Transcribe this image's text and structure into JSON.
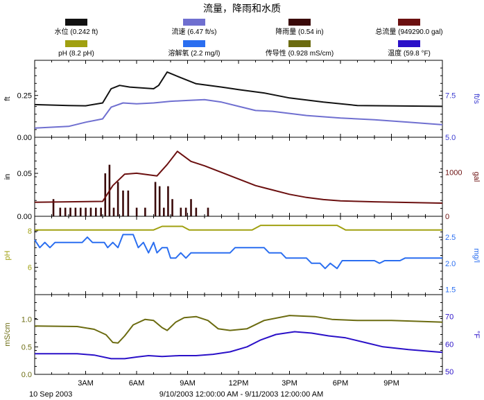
{
  "chart_data": {
    "type": "line",
    "title": "流量，降雨和水质",
    "legend": [
      {
        "label": "水位 (0.242 ft)",
        "color": "#111111"
      },
      {
        "label": "流速 (6.47 ft/s)",
        "color": "#6f6fd0"
      },
      {
        "label": "降雨量 (0.54 in)",
        "color": "#3a0a0a"
      },
      {
        "label": "总流量 (949290.0 gal)",
        "color": "#6b0f0f"
      },
      {
        "label": "pH (8.2 pH)",
        "color": "#a0a010"
      },
      {
        "label": "溶解氧 (2.2 mg/l)",
        "color": "#2a6ef0"
      },
      {
        "label": "传导性 (0.928 mS/cm)",
        "color": "#6b6b10"
      },
      {
        "label": "温度 (59.8 °F)",
        "color": "#2a10c8"
      }
    ],
    "x_axis": {
      "start_hour": 0,
      "end_hour": 24,
      "ticks": [
        {
          "h": 3,
          "label": "3AM"
        },
        {
          "h": 6,
          "label": "6AM"
        },
        {
          "h": 9,
          "label": "9AM"
        },
        {
          "h": 12,
          "label": "12PM"
        },
        {
          "h": 15,
          "label": "3PM"
        },
        {
          "h": 18,
          "label": "6PM"
        },
        {
          "h": 21,
          "label": "9PM"
        }
      ],
      "date_label": "10 Sep 2003",
      "range_label": "9/10/2003 12:00:00 AM - 9/11/2003 12:00:00 AM"
    },
    "panels": [
      {
        "id": "level-velocity",
        "left_axis": {
          "label": "ft",
          "ticks": [
            {
              "v": 0.0,
              "label": "0.00"
            },
            {
              "v": 0.25,
              "label": "0.25"
            }
          ],
          "range": [
            0,
            0.46
          ],
          "color": "#000000"
        },
        "right_axis": {
          "label": "ft/s",
          "ticks": [
            {
              "v": 5.0,
              "label": "5.0"
            },
            {
              "v": 7.5,
              "label": "7.5"
            }
          ],
          "range": [
            5.0,
            9.6
          ],
          "color": "#3a3ad0"
        },
        "series": [
          {
            "name": "水位",
            "axis": "left",
            "color": "#111111",
            "points": [
              [
                0,
                0.195
              ],
              [
                2,
                0.19
              ],
              [
                3,
                0.188
              ],
              [
                4,
                0.205
              ],
              [
                4.5,
                0.29
              ],
              [
                5,
                0.31
              ],
              [
                5.6,
                0.3
              ],
              [
                7,
                0.29
              ],
              [
                7.3,
                0.31
              ],
              [
                7.8,
                0.39
              ],
              [
                8.5,
                0.36
              ],
              [
                9.5,
                0.32
              ],
              [
                11,
                0.3
              ],
              [
                12,
                0.285
              ],
              [
                13.5,
                0.265
              ],
              [
                15,
                0.235
              ],
              [
                17,
                0.21
              ],
              [
                19,
                0.19
              ],
              [
                24,
                0.185
              ]
            ]
          },
          {
            "name": "流速",
            "axis": "right",
            "color": "#6f6fd0",
            "points": [
              [
                0,
                5.55
              ],
              [
                2,
                5.65
              ],
              [
                3,
                5.9
              ],
              [
                4,
                6.1
              ],
              [
                4.5,
                6.8
              ],
              [
                5.2,
                7.05
              ],
              [
                6,
                7.0
              ],
              [
                7,
                7.05
              ],
              [
                8,
                7.15
              ],
              [
                9,
                7.2
              ],
              [
                10,
                7.25
              ],
              [
                11,
                7.1
              ],
              [
                12,
                6.85
              ],
              [
                13,
                6.6
              ],
              [
                14,
                6.55
              ],
              [
                16,
                6.3
              ],
              [
                18,
                6.15
              ],
              [
                20,
                6.05
              ],
              [
                22,
                5.9
              ],
              [
                24,
                5.75
              ]
            ]
          }
        ]
      },
      {
        "id": "rain-flow",
        "left_axis": {
          "label": "in",
          "ticks": [
            {
              "v": 0.0,
              "label": "0.00"
            },
            {
              "v": 0.05,
              "label": "0.05"
            }
          ],
          "range": [
            0,
            0.092
          ],
          "color": "#000000"
        },
        "right_axis": {
          "label": "gal",
          "ticks": [
            {
              "v": 0,
              "label": "0"
            },
            {
              "v": 1000,
              "label": "1000"
            }
          ],
          "range": [
            0,
            1800
          ],
          "color": "#6b0f0f"
        },
        "rain_bars": [
          [
            1.1,
            0.02
          ],
          [
            1.5,
            0.01
          ],
          [
            1.8,
            0.01
          ],
          [
            2.1,
            0.01
          ],
          [
            2.4,
            0.01
          ],
          [
            2.7,
            0.01
          ],
          [
            3.0,
            0.01
          ],
          [
            3.3,
            0.01
          ],
          [
            3.6,
            0.01
          ],
          [
            3.9,
            0.01
          ],
          [
            4.15,
            0.05
          ],
          [
            4.4,
            0.06
          ],
          [
            4.65,
            0.01
          ],
          [
            4.9,
            0.04
          ],
          [
            5.2,
            0.03
          ],
          [
            5.5,
            0.03
          ],
          [
            6.0,
            0.01
          ],
          [
            6.5,
            0.01
          ],
          [
            7.1,
            0.04
          ],
          [
            7.35,
            0.035
          ],
          [
            7.6,
            0.01
          ],
          [
            7.85,
            0.035
          ],
          [
            8.1,
            0.02
          ],
          [
            8.6,
            0.01
          ],
          [
            8.9,
            0.01
          ],
          [
            9.2,
            0.02
          ],
          [
            9.5,
            0.01
          ],
          [
            10.2,
            0.01
          ]
        ],
        "series": [
          {
            "name": "总流量",
            "axis": "right",
            "color": "#6b0f0f",
            "points": [
              [
                0,
                320
              ],
              [
                4,
                340
              ],
              [
                4.6,
                700
              ],
              [
                5.3,
                960
              ],
              [
                6,
                980
              ],
              [
                7.2,
                920
              ],
              [
                7.8,
                1180
              ],
              [
                8.4,
                1480
              ],
              [
                9.2,
                1250
              ],
              [
                10,
                1150
              ],
              [
                11,
                1000
              ],
              [
                12,
                850
              ],
              [
                13,
                700
              ],
              [
                14,
                600
              ],
              [
                15,
                500
              ],
              [
                16,
                430
              ],
              [
                17,
                380
              ],
              [
                18,
                350
              ],
              [
                20,
                330
              ],
              [
                24,
                300
              ]
            ]
          }
        ]
      },
      {
        "id": "ph-do",
        "left_axis": {
          "label": "pH",
          "ticks": [
            {
              "v": 6,
              "label": "6"
            },
            {
              "v": 8,
              "label": "8"
            }
          ],
          "range": [
            4.5,
            8.8
          ],
          "color": "#a0a010"
        },
        "right_axis": {
          "label": "mg/l",
          "ticks": [
            {
              "v": 1.5,
              "label": "1.5"
            },
            {
              "v": 2.0,
              "label": "2.0"
            },
            {
              "v": 2.5,
              "label": "2.5"
            }
          ],
          "range": [
            1.4,
            2.9
          ],
          "color": "#2a6ef0"
        },
        "series": [
          {
            "name": "pH",
            "axis": "left",
            "color": "#a0a010",
            "points": [
              [
                0,
                8.05
              ],
              [
                7,
                8.05
              ],
              [
                7.5,
                8.25
              ],
              [
                8.7,
                8.25
              ],
              [
                9.1,
                8.05
              ],
              [
                12.8,
                8.05
              ],
              [
                13.3,
                8.3
              ],
              [
                17.8,
                8.3
              ],
              [
                18.3,
                8.05
              ],
              [
                24,
                8.05
              ]
            ]
          },
          {
            "name": "溶解氧",
            "axis": "right",
            "color": "#2a6ef0",
            "points": [
              [
                0,
                2.45
              ],
              [
                0.3,
                2.3
              ],
              [
                0.6,
                2.4
              ],
              [
                0.9,
                2.3
              ],
              [
                1.2,
                2.4
              ],
              [
                2.8,
                2.4
              ],
              [
                3.1,
                2.5
              ],
              [
                3.4,
                2.4
              ],
              [
                4.1,
                2.4
              ],
              [
                4.3,
                2.3
              ],
              [
                4.6,
                2.4
              ],
              [
                4.9,
                2.3
              ],
              [
                5.2,
                2.55
              ],
              [
                5.8,
                2.55
              ],
              [
                6.1,
                2.3
              ],
              [
                6.4,
                2.4
              ],
              [
                6.7,
                2.2
              ],
              [
                7.0,
                2.4
              ],
              [
                7.2,
                2.2
              ],
              [
                7.5,
                2.3
              ],
              [
                7.8,
                2.3
              ],
              [
                8.0,
                2.1
              ],
              [
                8.3,
                2.1
              ],
              [
                8.6,
                2.2
              ],
              [
                8.9,
                2.1
              ],
              [
                9.2,
                2.2
              ],
              [
                11.5,
                2.2
              ],
              [
                11.8,
                2.3
              ],
              [
                13.5,
                2.3
              ],
              [
                13.8,
                2.2
              ],
              [
                14.5,
                2.2
              ],
              [
                14.8,
                2.1
              ],
              [
                16,
                2.1
              ],
              [
                16.3,
                2.0
              ],
              [
                16.8,
                2.0
              ],
              [
                17.1,
                1.9
              ],
              [
                17.4,
                2.0
              ],
              [
                17.8,
                1.9
              ],
              [
                18.1,
                2.05
              ],
              [
                20,
                2.05
              ],
              [
                20.3,
                2.0
              ],
              [
                20.6,
                2.05
              ],
              [
                21.5,
                2.05
              ],
              [
                21.8,
                2.1
              ],
              [
                24,
                2.1
              ]
            ]
          }
        ]
      },
      {
        "id": "cond-temp",
        "left_axis": {
          "label": "mS/cm",
          "ticks": [
            {
              "v": 0.0,
              "label": "0.0"
            },
            {
              "v": 0.5,
              "label": "0.5"
            },
            {
              "v": 1.0,
              "label": "1.0"
            }
          ],
          "range": [
            0,
            1.45
          ],
          "color": "#6b6b10"
        },
        "right_axis": {
          "label": "°F",
          "ticks": [
            {
              "v": 50,
              "label": "50"
            },
            {
              "v": 60,
              "label": "60"
            },
            {
              "v": 70,
              "label": "70"
            }
          ],
          "range": [
            49,
            78
          ],
          "color": "#2a10c8"
        },
        "series": [
          {
            "name": "传导性",
            "axis": "left",
            "color": "#6b6b10",
            "points": [
              [
                0,
                0.88
              ],
              [
                2.5,
                0.87
              ],
              [
                3.5,
                0.82
              ],
              [
                4.2,
                0.72
              ],
              [
                4.6,
                0.58
              ],
              [
                4.9,
                0.57
              ],
              [
                5.3,
                0.7
              ],
              [
                5.8,
                0.9
              ],
              [
                6.5,
                1.0
              ],
              [
                7.0,
                0.98
              ],
              [
                7.5,
                0.85
              ],
              [
                7.8,
                0.8
              ],
              [
                8.3,
                0.95
              ],
              [
                8.8,
                1.03
              ],
              [
                9.5,
                1.05
              ],
              [
                10.2,
                0.98
              ],
              [
                10.8,
                0.83
              ],
              [
                11.5,
                0.8
              ],
              [
                12.5,
                0.83
              ],
              [
                13.5,
                0.98
              ],
              [
                15,
                1.07
              ],
              [
                16.5,
                1.05
              ],
              [
                17.5,
                1.0
              ],
              [
                19,
                0.98
              ],
              [
                21,
                0.98
              ],
              [
                24,
                0.95
              ]
            ]
          },
          {
            "name": "温度",
            "axis": "right",
            "color": "#2a10c8",
            "points": [
              [
                0,
                56.5
              ],
              [
                2.5,
                56.5
              ],
              [
                3.5,
                56
              ],
              [
                4.5,
                54.7
              ],
              [
                5.3,
                54.7
              ],
              [
                6,
                55.3
              ],
              [
                6.7,
                55.8
              ],
              [
                7.5,
                55.5
              ],
              [
                8.5,
                55.8
              ],
              [
                9.5,
                55.8
              ],
              [
                10.5,
                56.3
              ],
              [
                11.5,
                57.2
              ],
              [
                12.5,
                59
              ],
              [
                13.3,
                61.5
              ],
              [
                14.2,
                63.5
              ],
              [
                15.3,
                64.5
              ],
              [
                16.3,
                64
              ],
              [
                17.3,
                63
              ],
              [
                18.3,
                62.3
              ],
              [
                19.5,
                60.5
              ],
              [
                20.5,
                59
              ],
              [
                22,
                58
              ],
              [
                24,
                57
              ]
            ]
          }
        ]
      }
    ]
  }
}
